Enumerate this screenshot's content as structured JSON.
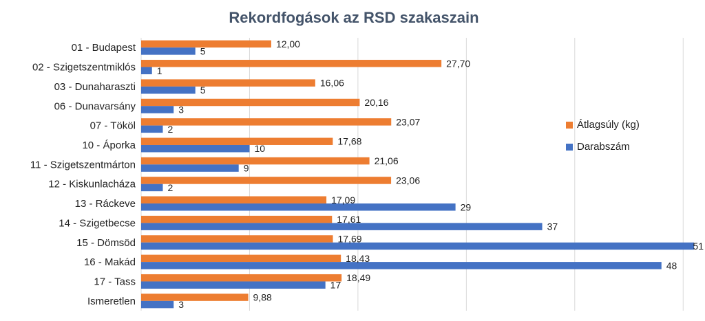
{
  "colors": {
    "avg_weight": "#ed7d31",
    "count": "#4472c4",
    "grid": "#d9d9d9",
    "title": "#44546a"
  },
  "chart_data": {
    "type": "bar",
    "orientation": "horizontal",
    "title": "Rekordfogások az RSD szakaszain",
    "xlabel": "",
    "ylabel": "",
    "xlim": [
      0,
      51
    ],
    "grid": true,
    "legend_position": "right",
    "categories": [
      "01 - Budapest",
      "02 - Szigetszentmiklós",
      "03 - Dunaharaszti",
      "06 - Dunavarsány",
      "07 - Tököl",
      "10 - Áporka",
      "11 - Szigetszentmárton",
      "12 - Kiskunlacháza",
      "13 - Ráckeve",
      "14 - Szigetbecse",
      "15 - Dömsöd",
      "16 - Makád",
      "17 - Tass",
      "Ismeretlen"
    ],
    "series": [
      {
        "name": "Átlagsúly (kg)",
        "color_key": "avg_weight",
        "values": [
          12.0,
          27.7,
          16.06,
          20.16,
          23.07,
          17.68,
          21.06,
          23.06,
          17.09,
          17.61,
          17.69,
          18.43,
          18.49,
          9.88
        ],
        "labels": [
          "12,00",
          "27,70",
          "16,06",
          "20,16",
          "23,07",
          "17,68",
          "21,06",
          "23,06",
          "17,09",
          "17,61",
          "17,69",
          "18,43",
          "18,49",
          "9,88"
        ]
      },
      {
        "name": "Darabszám",
        "color_key": "count",
        "values": [
          5,
          1,
          5,
          3,
          2,
          10,
          9,
          2,
          29,
          37,
          51,
          48,
          17,
          3
        ],
        "labels": [
          "5",
          "1",
          "5",
          "3",
          "2",
          "10",
          "9",
          "2",
          "29",
          "37",
          "51",
          "48",
          "17",
          "3"
        ]
      }
    ]
  }
}
